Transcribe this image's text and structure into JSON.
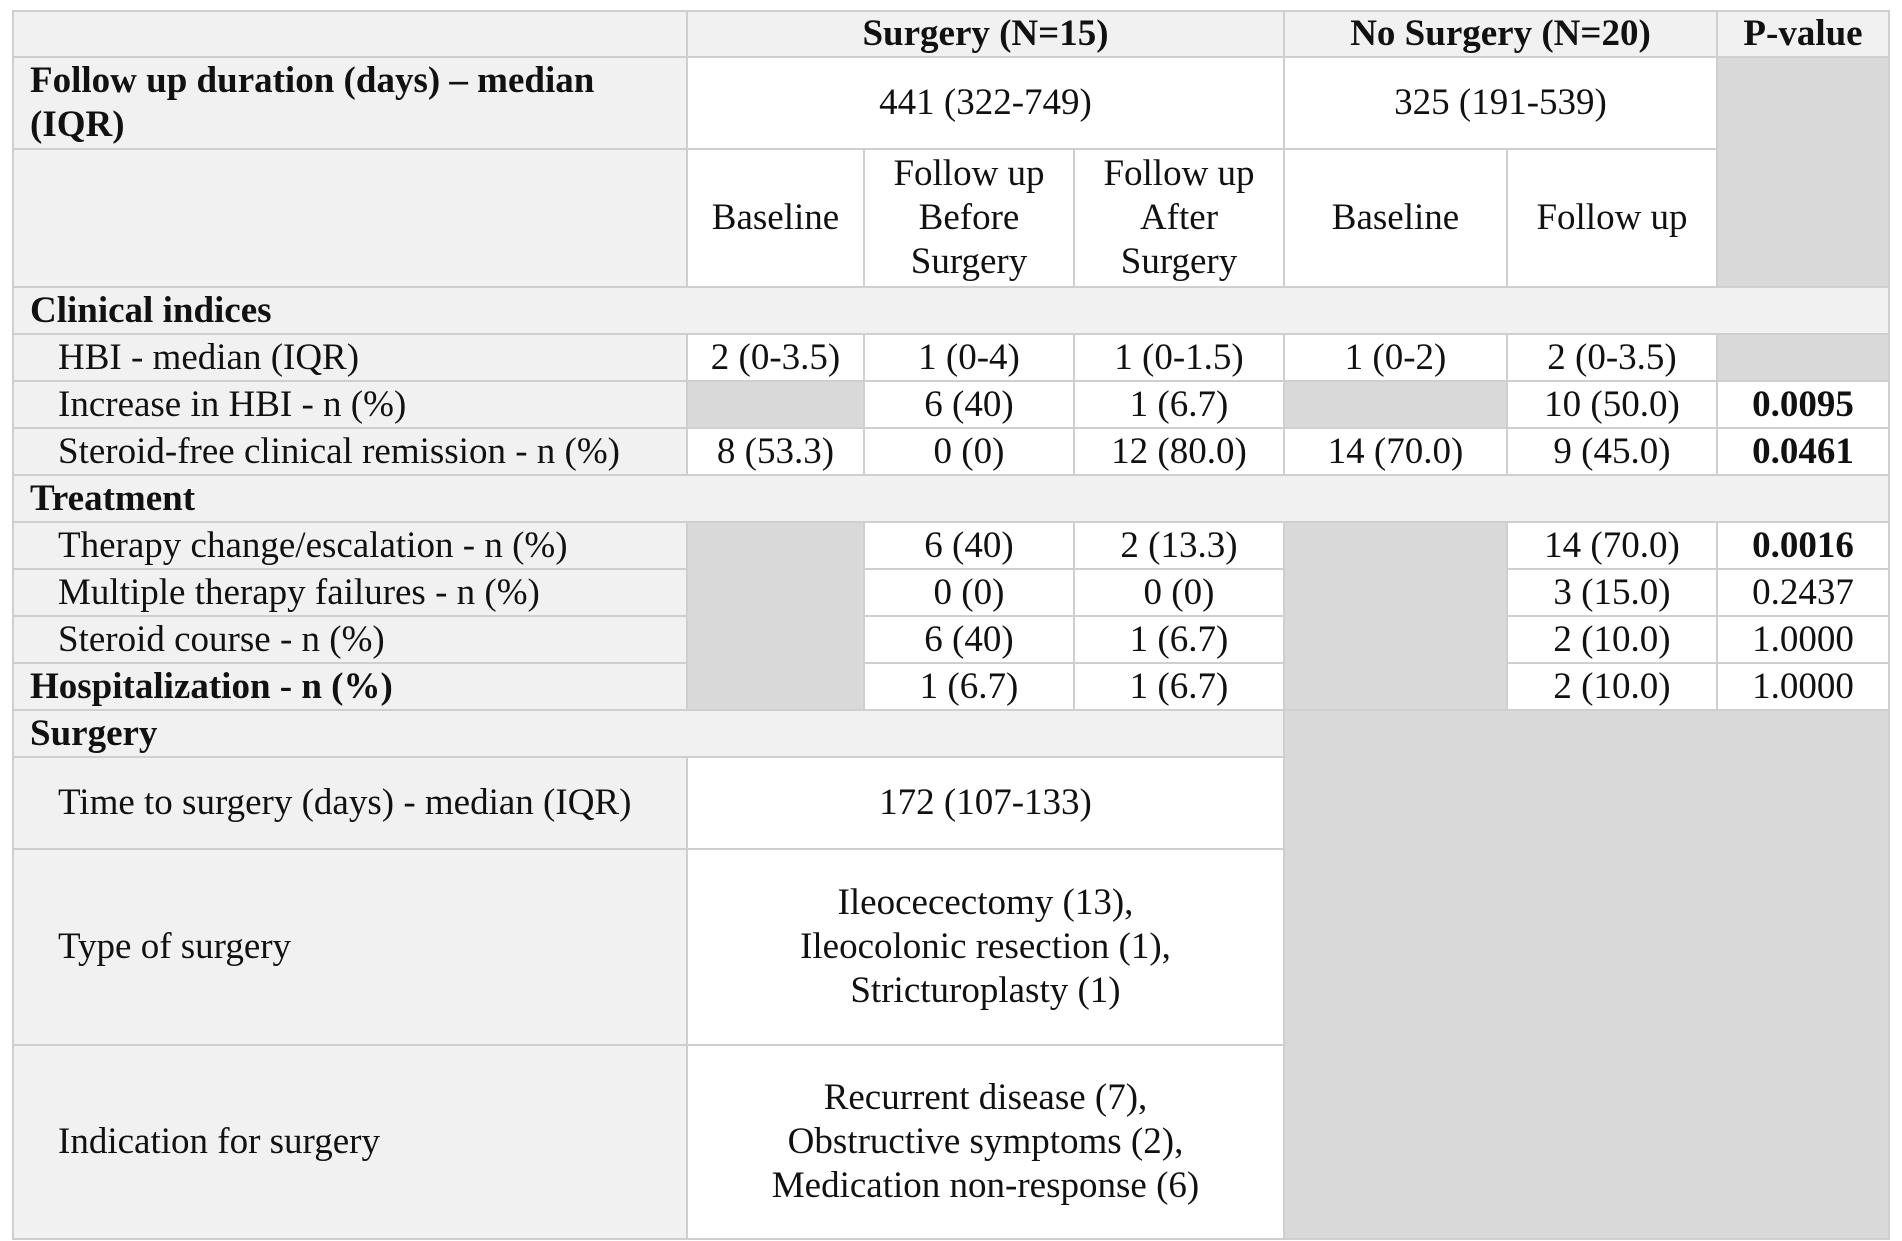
{
  "header": {
    "surgery": "Surgery (N=15)",
    "no_surgery": "No Surgery (N=20)",
    "pvalue": "P-value"
  },
  "followup": {
    "label": "Follow up duration (days) – median (IQR)",
    "surgery": "441 (322-749)",
    "no_surgery": "325 (191-539)"
  },
  "subheaders": {
    "baseline": "Baseline",
    "fu_before": "Follow up Before Surgery",
    "fu_after": "Follow up After Surgery",
    "baseline_ns": "Baseline",
    "fu_ns": "Follow up"
  },
  "clinical": {
    "title": "Clinical indices",
    "rows": [
      {
        "label": "HBI - median (IQR)",
        "s_base": "2 (0-3.5)",
        "s_before": "1 (0-4)",
        "s_after": "1 (0-1.5)",
        "ns_base": "1 (0-2)",
        "ns_fu": "2 (0-3.5)",
        "p": ""
      },
      {
        "label": "Increase in HBI - n (%)",
        "s_base": "",
        "s_before": "6 (40)",
        "s_after": "1 (6.7)",
        "ns_base": "",
        "ns_fu": "10 (50.0)",
        "p": "0.0095"
      },
      {
        "label": "Steroid-free clinical remission - n (%)",
        "s_base": "8 (53.3)",
        "s_before": "0 (0)",
        "s_after": "12 (80.0)",
        "ns_base": "14 (70.0)",
        "ns_fu": "9 (45.0)",
        "p": "0.0461"
      }
    ]
  },
  "treatment": {
    "title": "Treatment",
    "rows": [
      {
        "label": "Therapy change/escalation - n (%)",
        "s_before": "6 (40)",
        "s_after": "2 (13.3)",
        "ns_fu": "14 (70.0)",
        "p": "0.0016"
      },
      {
        "label": "Multiple therapy failures - n (%)",
        "s_before": "0 (0)",
        "s_after": "0 (0)",
        "ns_fu": "3 (15.0)",
        "p": "0.2437"
      },
      {
        "label": "Steroid course - n (%)",
        "s_before": "6 (40)",
        "s_after": "1 (6.7)",
        "ns_fu": "2 (10.0)",
        "p": "1.0000"
      }
    ]
  },
  "hospitalization": {
    "label": "Hospitalization - n (%)",
    "s_before": "1 (6.7)",
    "s_after": "1 (6.7)",
    "ns_fu": "2 (10.0)",
    "p": "1.0000"
  },
  "surgery_section": {
    "title": "Surgery",
    "time_label": "Time to surgery (days) - median (IQR)",
    "time_value": "172 (107-133)",
    "type_label": "Type of surgery",
    "type_lines": [
      "Ileocecectomy (13),",
      "Ileocolonic resection (1),",
      "Stricturoplasty (1)"
    ],
    "indication_label": "Indication for surgery",
    "indication_lines": [
      "Recurrent disease (7),",
      "Obstructive symptoms (2),",
      "Medication non-response (6)"
    ]
  }
}
